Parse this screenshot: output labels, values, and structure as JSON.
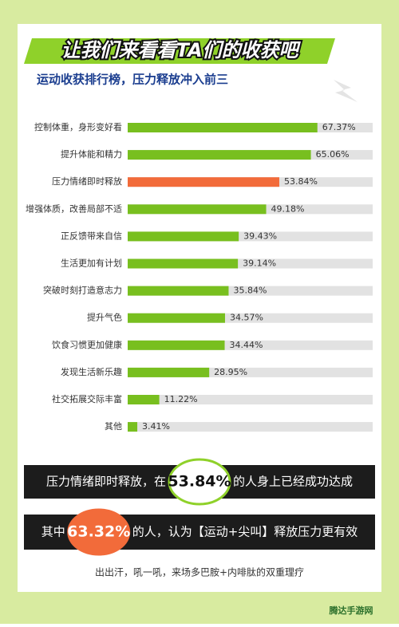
{
  "chart_data": {
    "type": "hbar",
    "title": "让我们来看看TA们的收获吧",
    "subtitle": "运动收获排行榜，压力释放冲入前三",
    "categories": [
      "控制体重，身形变好看",
      "提升体能和精力",
      "压力情绪即时释放",
      "增强体质，改善局部不适",
      "正反馈带来自信",
      "生活更加有计划",
      "突破时刻打造意志力",
      "提升气色",
      "饮食习惯更加健康",
      "发现生活新乐趣",
      "社交拓展交际丰富",
      "其他"
    ],
    "values": [
      67.37,
      65.06,
      53.84,
      49.18,
      39.43,
      39.14,
      35.84,
      34.57,
      34.44,
      28.95,
      11.22,
      3.41
    ],
    "value_labels": [
      "67.37%",
      "65.06%",
      "53.84%",
      "49.18%",
      "39.43%",
      "39.14%",
      "35.84%",
      "34.57%",
      "34.44%",
      "28.95%",
      "11.22%",
      "3.41%"
    ],
    "colors": [
      "#78bf1f",
      "#78bf1f",
      "#f26b3a",
      "#78bf1f",
      "#78bf1f",
      "#78bf1f",
      "#78bf1f",
      "#78bf1f",
      "#78bf1f",
      "#78bf1f",
      "#78bf1f",
      "#78bf1f"
    ],
    "xlim": [
      0,
      87
    ]
  },
  "callouts": [
    {
      "before": "压力情绪即时释放，在",
      "value": "53.84%",
      "after": "的人身上已经成功达成"
    },
    {
      "before": "其中",
      "value": "63.32%",
      "after": "的人，认为【运动+尖叫】释放压力更有效"
    }
  ],
  "footer": "出出汗，吼一吼，来场多巴胺+内啡肽的双重理疗",
  "watermark": "腾达手游网"
}
